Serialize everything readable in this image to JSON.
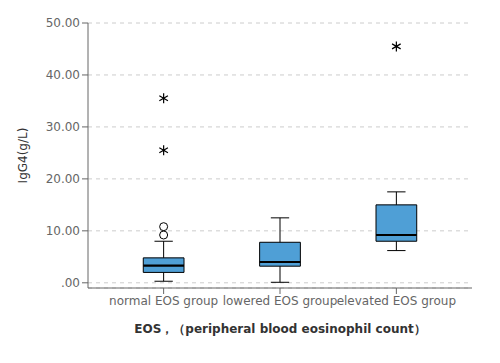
{
  "chart_data": {
    "type": "box",
    "xlabel": "EOS，（peripheral blood eosinophil count）",
    "ylabel": "IgG4(g/L)",
    "categories": [
      "normal EOS group",
      "lowered EOS group",
      "elevated EOS group"
    ],
    "color": "#4f9fd6",
    "ylim": [
      -1,
      50
    ],
    "yticks": [
      {
        "value": 0,
        "label": ".00"
      },
      {
        "value": 10,
        "label": "10.00"
      },
      {
        "value": 20,
        "label": "20.00"
      },
      {
        "value": 30,
        "label": "30.00"
      },
      {
        "value": 40,
        "label": "40.00"
      },
      {
        "value": 50,
        "label": "50.00"
      }
    ],
    "grid": true,
    "boxes": [
      {
        "q1": 2.0,
        "median": 3.3,
        "q3": 4.8,
        "whisker_low": 0.3,
        "whisker_high": 8.0,
        "fliers_circle": [
          9.2,
          10.8
        ],
        "fliers_star": [
          25.5,
          35.5
        ]
      },
      {
        "q1": 3.2,
        "median": 4.0,
        "q3": 7.8,
        "whisker_low": 0.1,
        "whisker_high": 12.5,
        "fliers_circle": [],
        "fliers_star": []
      },
      {
        "q1": 8.0,
        "median": 9.2,
        "q3": 15.0,
        "whisker_low": 6.2,
        "whisker_high": 17.5,
        "fliers_circle": [],
        "fliers_star": [
          45.5
        ]
      }
    ]
  }
}
